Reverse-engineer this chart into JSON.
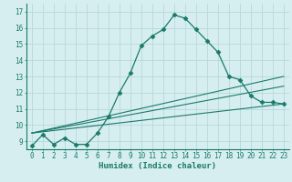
{
  "xlabel": "Humidex (Indice chaleur)",
  "ylabel": "",
  "bg_color": "#d6eef0",
  "grid_color": "#b8d8dc",
  "line_color": "#1a7a6a",
  "xlim": [
    -0.5,
    23.5
  ],
  "ylim": [
    8.5,
    17.5
  ],
  "xticks": [
    0,
    1,
    2,
    3,
    4,
    5,
    6,
    7,
    8,
    9,
    10,
    11,
    12,
    13,
    14,
    15,
    16,
    17,
    18,
    19,
    20,
    21,
    22,
    23
  ],
  "yticks": [
    9,
    10,
    11,
    12,
    13,
    14,
    15,
    16,
    17
  ],
  "series": [
    {
      "x": [
        0,
        1,
        2,
        3,
        4,
        5,
        6,
        7,
        8,
        9,
        10,
        11,
        12,
        13,
        14,
        15,
        16,
        17,
        18,
        19,
        20,
        21,
        22,
        23
      ],
      "y": [
        8.7,
        9.4,
        8.8,
        9.2,
        8.8,
        8.8,
        9.5,
        10.5,
        12.0,
        13.2,
        14.9,
        15.5,
        15.9,
        16.8,
        16.6,
        15.9,
        15.2,
        14.5,
        13.0,
        12.8,
        11.8,
        11.4,
        11.4,
        11.3
      ],
      "has_markers": true
    },
    {
      "x": [
        0,
        23
      ],
      "y": [
        9.5,
        13.0
      ],
      "has_markers": false
    },
    {
      "x": [
        0,
        23
      ],
      "y": [
        9.5,
        12.4
      ],
      "has_markers": false
    },
    {
      "x": [
        0,
        23
      ],
      "y": [
        9.5,
        11.3
      ],
      "has_markers": false
    }
  ]
}
